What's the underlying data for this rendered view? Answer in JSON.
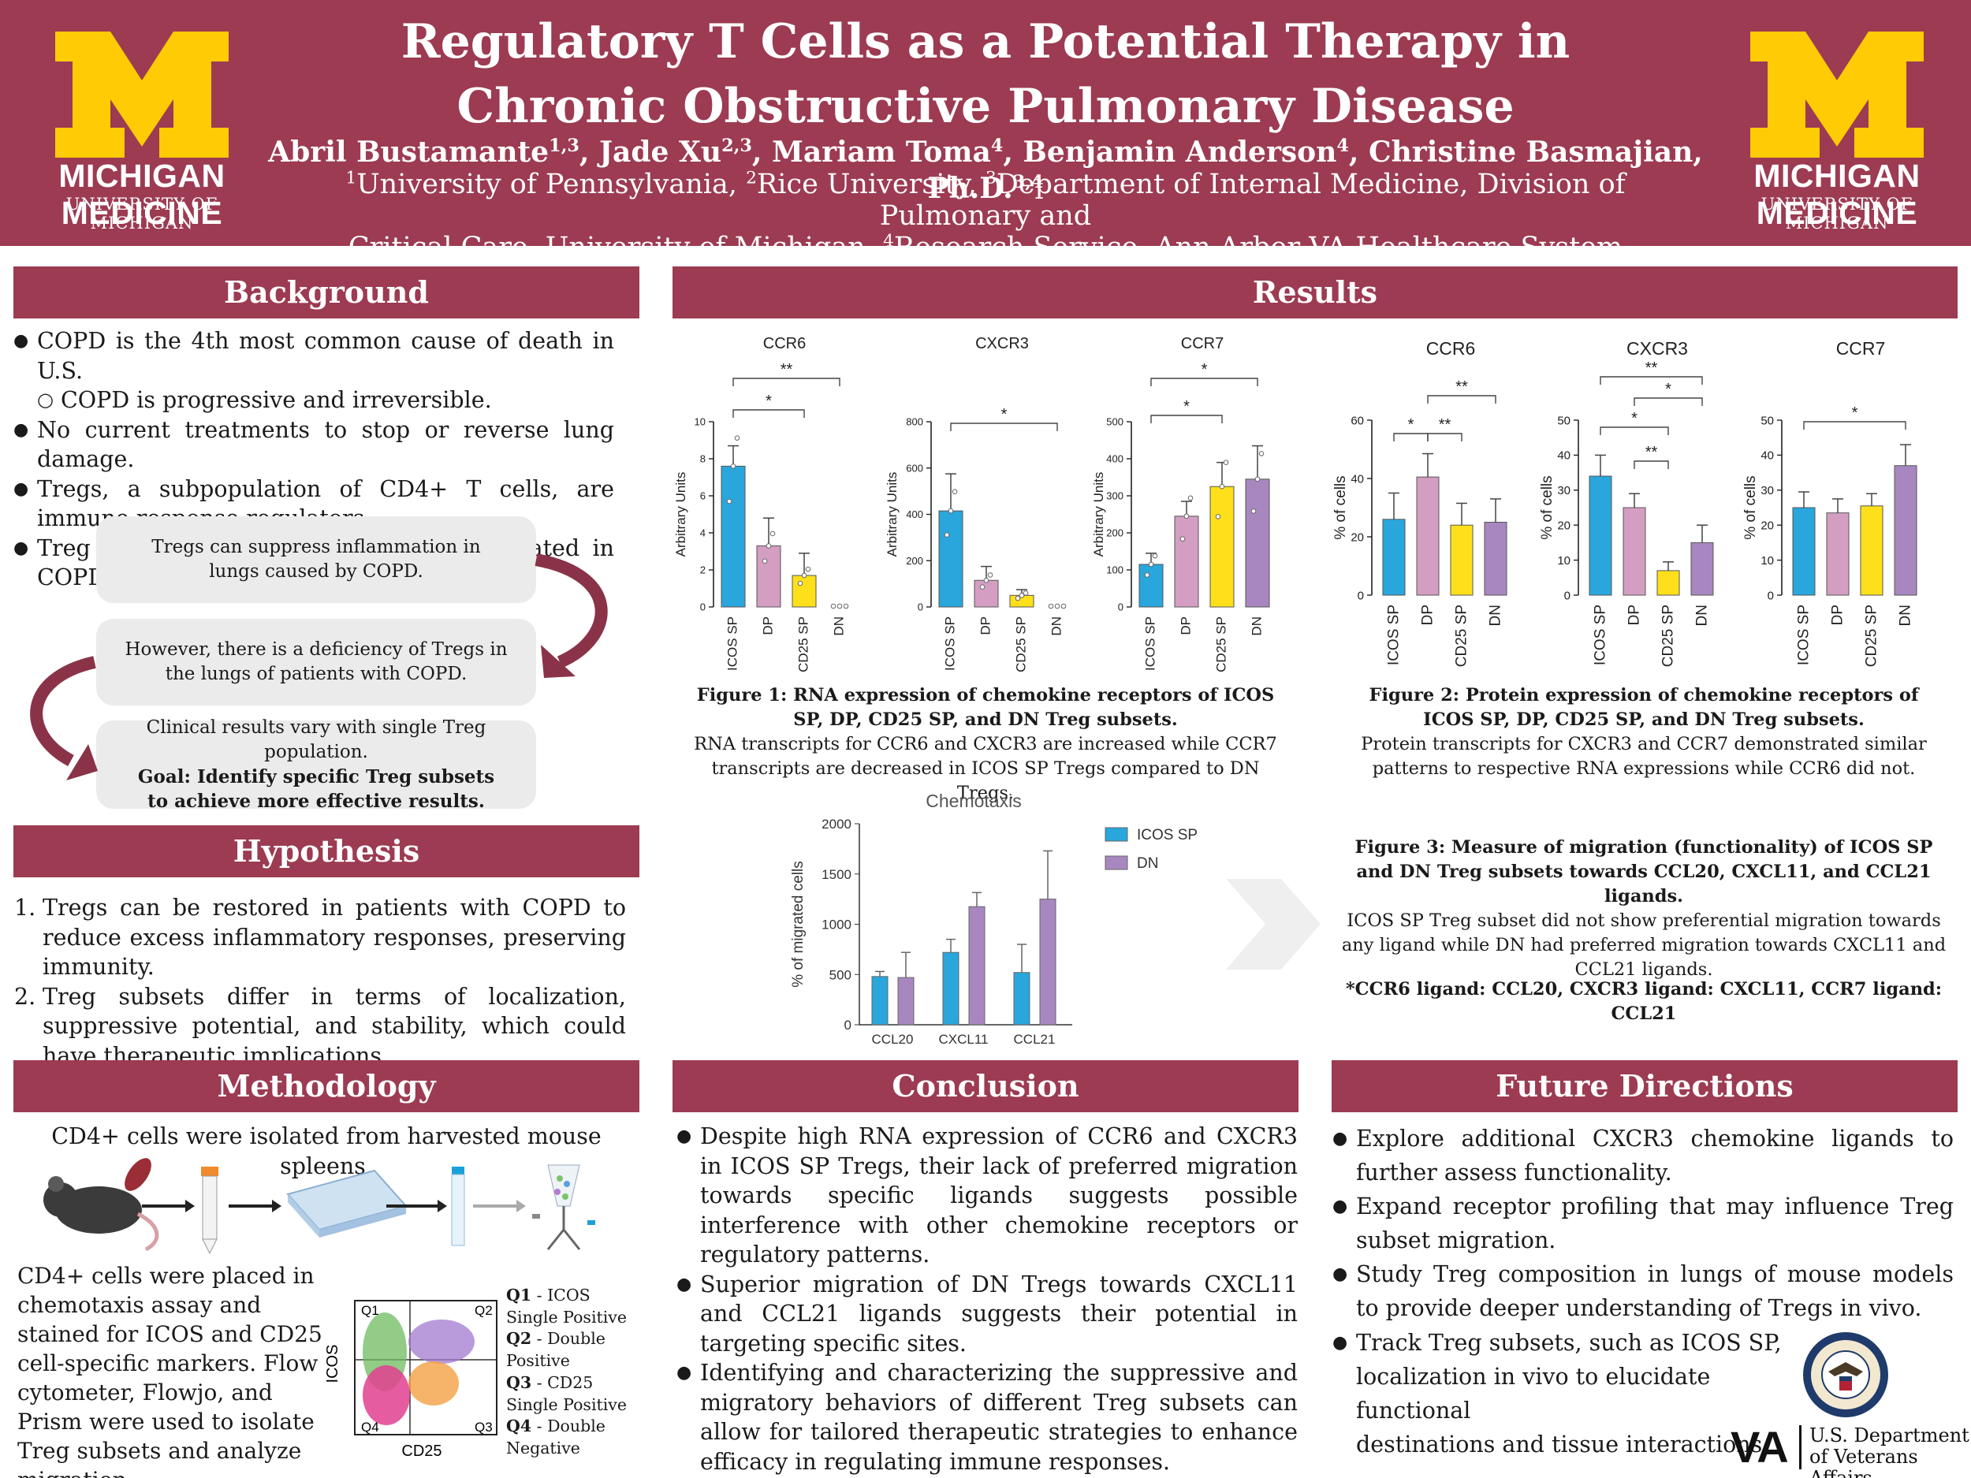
{
  "colors": {
    "maroon": "#9c3b52",
    "maize": "#ffcb05",
    "icos": "#29a6dc",
    "dp": "#d49ec2",
    "cd25": "#fde01a",
    "dn": "#a887c0"
  },
  "header": {
    "title_line1": "Regulatory T Cells as a Potential Therapy in",
    "title_line2": "Chronic Obstructive Pulmonary Disease",
    "authors": [
      {
        "name": "Abril Bustamante",
        "sup": "1,3",
        "sep": ", "
      },
      {
        "name": "Jade Xu",
        "sup": "2,3",
        "sep": ", "
      },
      {
        "name": "Mariam Toma",
        "sup": "4",
        "sep": ", "
      },
      {
        "name": "Benjamin Anderson",
        "sup": "4",
        "sep": ", "
      },
      {
        "name": "Christine Basmajian,  Ph.D.",
        "sup": "3,4",
        "sep": ""
      }
    ],
    "affil_line1": [
      {
        "sup": "1",
        "text": "University of Pennsylvania, "
      },
      {
        "sup": "2",
        "text": "Rice University, "
      },
      {
        "sup": "3",
        "text": "Department of Internal Medicine, Division of Pulmonary and"
      }
    ],
    "affil_line2": [
      {
        "sup": "",
        "text": "Critical Care, University of Michigan, "
      },
      {
        "sup": "4",
        "text": "Research Service, Ann Arbor VA Healthcare System"
      }
    ],
    "logo_main": "MICHIGAN MEDICINE",
    "logo_sub": "UNIVERSITY OF MICHIGAN"
  },
  "background": {
    "heading": "Background",
    "bullets": [
      {
        "text": "COPD is the 4th most common cause of death in U.S.",
        "sub": false
      },
      {
        "text": "COPD is progressive and irreversible.",
        "sub": true
      },
      {
        "text": "No current treatments to stop or reverse lung damage.",
        "sub": false
      },
      {
        "text": "Tregs, a subpopulation of CD4+ T cells, are immune response regulators.",
        "sub": false
      },
      {
        "text": "Treg applications have not been investigated in COPD.",
        "sub": false
      }
    ],
    "box1": "Tregs can suppress inflammation in lungs caused by COPD.",
    "box2": "However, there is a deficiency of Tregs in the lungs of patients with COPD.",
    "box3_plain": "Clinical results vary with single Treg population.",
    "box3_bold": "Goal: Identify specific Treg subsets to achieve more effective results."
  },
  "hypothesis": {
    "heading": "Hypothesis",
    "items": [
      {
        "num": "1.",
        "text": "Tregs can be restored in patients with COPD to reduce excess inflammatory responses, preserving  immunity."
      },
      {
        "num": "2.",
        "text": "Treg subsets differ in terms of localization, suppressive potential, and stability, which could have therapeutic implications."
      }
    ]
  },
  "methodology": {
    "heading": "Methodology",
    "intro": "CD4+ cells were isolated from harvested mouse spleens.",
    "para": "CD4+ cells were placed in chemotaxis assay and stained for ICOS and CD25 cell-specific markers. Flow cytometer, Flowjo, and Prism were used to isolate Treg subsets and analyze migration.",
    "flow_ylabel": "ICOS",
    "flow_xlabel": "CD25",
    "quadrants": [
      "Q1",
      "Q2",
      "Q4",
      "Q3"
    ],
    "legend": [
      {
        "q": "Q1",
        "text": " - ICOS Single Positive"
      },
      {
        "q": "Q2",
        "text": " - Double Positive"
      },
      {
        "q": "Q3",
        "text": " - CD25 Single Positive"
      },
      {
        "q": "Q4",
        "text": " - Double Negative"
      }
    ]
  },
  "results": {
    "heading": "Results",
    "fig1_title": "Figure 1: RNA expression of chemokine receptors of ICOS SP, DP, CD25 SP, and DN Treg subsets.",
    "fig1_text": "RNA transcripts for CCR6 and CXCR3 are increased while CCR7 transcripts are decreased in ICOS SP Tregs compared to DN Tregs.",
    "fig2_title": "Figure 2: Protein expression of chemokine receptors of ICOS SP, DP, CD25 SP, and DN Treg subsets.",
    "fig2_text": "Protein transcripts for CXCR3 and CCR7 demonstrated similar patterns to respective RNA expressions while CCR6 did not.",
    "fig3_title": "Figure 3: Measure of migration (functionality) of ICOS SP and DN Treg subsets towards CCL20, CXCL11, and CCL21 ligands.",
    "fig3_text": "ICOS SP Treg subset did not show preferential migration towards any ligand while DN had preferred migration towards CXCL11 and CCL21 ligands.",
    "ligand_note": "*CCR6 ligand: CCL20, CXCR3 ligand: CXCL11, CCR7 ligand: CCL21"
  },
  "conclusion": {
    "heading": "Conclusion",
    "bullets": [
      "Despite high RNA expression of CCR6 and CXCR3 in ICOS SP Tregs, their lack of preferred migration towards specific ligands suggests possible interference with other chemokine receptors or regulatory patterns.",
      "Superior migration of DN Tregs towards CXCL11 and CCL21 ligands suggests their potential in targeting specific sites.",
      "Identifying and characterizing the suppressive and migratory behaviors of different Treg subsets can allow for tailored therapeutic strategies to enhance efficacy in regulating immune responses."
    ]
  },
  "future": {
    "heading": "Future Directions",
    "bullets": [
      "Explore additional CXCR3 chemokine ligands to further assess functionality.",
      "Expand receptor profiling that may influence Treg subset migration.",
      "Study Treg composition in lungs of mouse models to provide deeper understanding of Tregs in vivo."
    ],
    "last_bullet_line1": "Track Treg subsets, such as ICOS SP,",
    "last_bullet_line2": "localization in vivo to elucidate functional",
    "last_bullet_line3": "destinations and tissue interactions.",
    "va_mark": "VA",
    "va_dept1": "U.S. Department",
    "va_dept2": "of Veterans Affairs"
  },
  "chart_data": [
    {
      "type": "bar",
      "title": "CCR6",
      "ylabel": "Arbitrary Units",
      "ylim": [
        0,
        10
      ],
      "yticks": [
        0,
        2,
        4,
        6,
        8,
        10
      ],
      "categories": [
        "ICOS SP",
        "DP",
        "CD25 SP",
        "DN"
      ],
      "values": [
        7.6,
        3.3,
        1.7,
        0.0
      ],
      "errors": [
        1.1,
        1.5,
        1.2,
        0
      ],
      "annotations": [
        {
          "from": 0,
          "to": 2,
          "label": "*"
        },
        {
          "from": 0,
          "to": 3,
          "label": "**"
        }
      ]
    },
    {
      "type": "bar",
      "title": "CXCR3",
      "ylabel": "Arbitrary Units",
      "ylim": [
        0,
        800
      ],
      "yticks": [
        0,
        200,
        400,
        600,
        800
      ],
      "categories": [
        "ICOS SP",
        "DP",
        "CD25 SP",
        "DN"
      ],
      "values": [
        415,
        115,
        50,
        0
      ],
      "errors": [
        160,
        60,
        25,
        0
      ],
      "annotations": [
        {
          "from": 0,
          "to": 3,
          "label": "*"
        }
      ]
    },
    {
      "type": "bar",
      "title": "CCR7",
      "ylabel": "Arbitrary Units",
      "ylim": [
        0,
        500
      ],
      "yticks": [
        0,
        100,
        200,
        300,
        400,
        500
      ],
      "categories": [
        "ICOS SP",
        "DP",
        "CD25 SP",
        "DN"
      ],
      "values": [
        115,
        245,
        325,
        345
      ],
      "errors": [
        30,
        40,
        65,
        90
      ],
      "annotations": [
        {
          "from": 0,
          "to": 2,
          "label": "*"
        },
        {
          "from": 0,
          "to": 3,
          "label": "*"
        }
      ]
    },
    {
      "type": "bar",
      "title": "CCR6",
      "ylabel": "% of cells",
      "ylim": [
        0,
        60
      ],
      "yticks": [
        0,
        20,
        40,
        60
      ],
      "categories": [
        "ICOS SP",
        "DP",
        "CD25 SP",
        "DN"
      ],
      "values": [
        26,
        40.5,
        24,
        25
      ],
      "errors": [
        9,
        8,
        7.5,
        8
      ],
      "annotations": [
        {
          "from": 0,
          "to": 1,
          "label": "*"
        },
        {
          "from": 1,
          "to": 2,
          "label": "**"
        },
        {
          "from": 1,
          "to": 3,
          "label": "**"
        }
      ]
    },
    {
      "type": "bar",
      "title": "CXCR3",
      "ylabel": "% of cells",
      "ylim": [
        0,
        50
      ],
      "yticks": [
        0,
        10,
        20,
        30,
        40,
        50
      ],
      "categories": [
        "ICOS SP",
        "DP",
        "CD25 SP",
        "DN"
      ],
      "values": [
        34,
        25,
        7,
        15
      ],
      "errors": [
        6,
        4,
        2.5,
        5
      ],
      "annotations": [
        {
          "from": 1,
          "to": 2,
          "label": "**"
        },
        {
          "from": 0,
          "to": 2,
          "label": "*"
        },
        {
          "from": 1,
          "to": 3,
          "label": "*"
        },
        {
          "from": 0,
          "to": 3,
          "label": "**"
        }
      ]
    },
    {
      "type": "bar",
      "title": "CCR7",
      "ylabel": "% of cells",
      "ylim": [
        0,
        50
      ],
      "yticks": [
        0,
        10,
        20,
        30,
        40,
        50
      ],
      "categories": [
        "ICOS SP",
        "DP",
        "CD25 SP",
        "DN"
      ],
      "values": [
        25,
        23.5,
        25.5,
        37
      ],
      "errors": [
        4.5,
        4,
        3.5,
        6
      ],
      "annotations": [
        {
          "from": 0,
          "to": 3,
          "label": "*"
        }
      ]
    },
    {
      "type": "bar",
      "title": "Chemotaxis",
      "ylabel": "% of migrated cells",
      "ylim": [
        0,
        2000
      ],
      "yticks": [
        0,
        500,
        1000,
        1500,
        2000
      ],
      "categories": [
        "CCL20",
        "CXCL11",
        "CCL21"
      ],
      "series": [
        {
          "name": "ICOS SP",
          "values": [
            480,
            720,
            520
          ],
          "errors": [
            50,
            130,
            280
          ]
        },
        {
          "name": "DN",
          "values": [
            470,
            1175,
            1250
          ],
          "errors": [
            250,
            140,
            480
          ]
        }
      ]
    }
  ]
}
